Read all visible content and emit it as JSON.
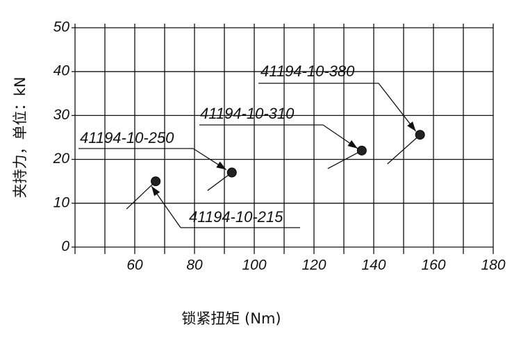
{
  "chart_data": {
    "type": "scatter",
    "x": [
      67,
      92.5,
      136,
      155.5
    ],
    "values": [
      15,
      17,
      22,
      25.6
    ],
    "point_labels": [
      "41194-10-215",
      "41194-10-250",
      "41194-10-310",
      "41194-10-380"
    ],
    "color": "#222",
    "xlim": [
      40,
      180
    ],
    "xticks": [
      60,
      80,
      100,
      120,
      140,
      160,
      180
    ],
    "xgrid": [
      50,
      60,
      70,
      80,
      90,
      100,
      110,
      120,
      130,
      140,
      150,
      160,
      170,
      180
    ],
    "ylim": [
      0,
      50
    ],
    "yticks": [
      0,
      10,
      20,
      30,
      40,
      50
    ],
    "grid": true,
    "xlabel": "锁紧扭矩 (Nm)",
    "ylabel": "夹持力，单位：kN"
  }
}
